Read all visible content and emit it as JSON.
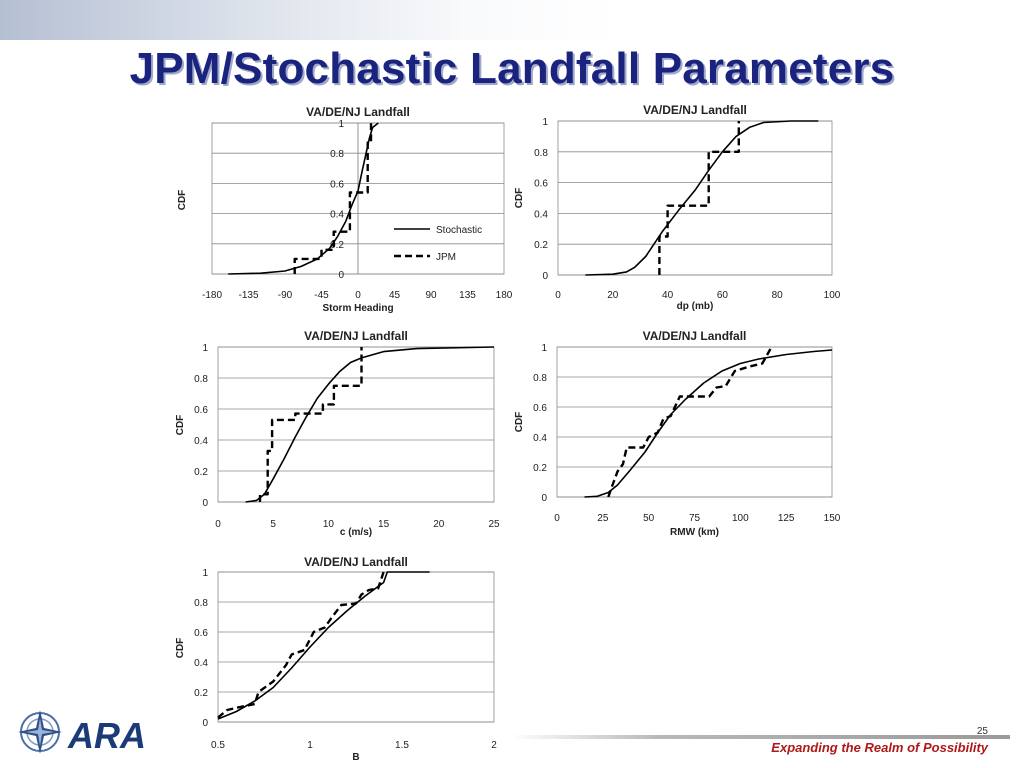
{
  "slide": {
    "title": "JPM/Stochastic Landfall Parameters",
    "page_number": "25",
    "tagline": "Expanding the Realm of Possibility",
    "logo_text": "ARA",
    "colors": {
      "title": "#1a237e",
      "tagline": "#b01818"
    }
  },
  "chart_data": [
    {
      "type": "line",
      "title": "VA/DE/NJ Landfall",
      "xlabel": "Storm Heading",
      "ylabel": "CDF",
      "xlim": [
        -180,
        180
      ],
      "ylim": [
        0,
        1
      ],
      "xticks": [
        -180,
        -135,
        -90,
        -45,
        0,
        45,
        90,
        135,
        180
      ],
      "yticks": [
        0,
        0.2,
        0.4,
        0.6,
        0.8,
        1
      ],
      "ytick_labels": [
        "0",
        "0.2",
        "0.4",
        "0.6",
        "0.8",
        "1"
      ],
      "yaxis_at_zero": true,
      "legend": {
        "position": "right",
        "entries": [
          "Stochastic",
          "JPM"
        ]
      },
      "series": [
        {
          "name": "Stochastic",
          "style": "solid",
          "points": [
            [
              -160,
              0
            ],
            [
              -120,
              0.005
            ],
            [
              -90,
              0.02
            ],
            [
              -70,
              0.05
            ],
            [
              -50,
              0.1
            ],
            [
              -35,
              0.17
            ],
            [
              -25,
              0.25
            ],
            [
              -15,
              0.35
            ],
            [
              -8,
              0.45
            ],
            [
              0,
              0.55
            ],
            [
              5,
              0.68
            ],
            [
              10,
              0.8
            ],
            [
              14,
              0.9
            ],
            [
              18,
              0.97
            ],
            [
              25,
              1.0
            ]
          ]
        },
        {
          "name": "JPM",
          "style": "dashed",
          "points": [
            [
              -78,
              0
            ],
            [
              -78,
              0.1
            ],
            [
              -60,
              0.1
            ],
            [
              -45,
              0.1
            ],
            [
              -45,
              0.16
            ],
            [
              -30,
              0.16
            ],
            [
              -30,
              0.28
            ],
            [
              -10,
              0.28
            ],
            [
              -10,
              0.54
            ],
            [
              12,
              0.54
            ],
            [
              12,
              0.87
            ],
            [
              16,
              0.87
            ],
            [
              16,
              1.0
            ]
          ]
        }
      ]
    },
    {
      "type": "line",
      "title": "VA/DE/NJ Landfall",
      "xlabel": "dp (mb)",
      "ylabel": "CDF",
      "xlim": [
        0,
        100
      ],
      "ylim": [
        0,
        1
      ],
      "xticks": [
        0,
        20,
        40,
        60,
        80,
        100
      ],
      "yticks": [
        0,
        0.2,
        0.4,
        0.6,
        0.8,
        1
      ],
      "ytick_labels": [
        "0",
        "0.2",
        "0.4",
        "0.6",
        "0.8",
        "1"
      ],
      "series": [
        {
          "name": "Stochastic",
          "style": "solid",
          "points": [
            [
              10,
              0
            ],
            [
              20,
              0.005
            ],
            [
              25,
              0.02
            ],
            [
              28,
              0.05
            ],
            [
              32,
              0.12
            ],
            [
              38,
              0.28
            ],
            [
              44,
              0.42
            ],
            [
              50,
              0.55
            ],
            [
              55,
              0.68
            ],
            [
              60,
              0.8
            ],
            [
              65,
              0.9
            ],
            [
              70,
              0.96
            ],
            [
              75,
              0.99
            ],
            [
              85,
              1.0
            ],
            [
              95,
              1.0
            ]
          ]
        },
        {
          "name": "JPM",
          "style": "dashed",
          "points": [
            [
              37,
              0
            ],
            [
              37,
              0.25
            ],
            [
              40,
              0.25
            ],
            [
              40,
              0.45
            ],
            [
              55,
              0.45
            ],
            [
              55,
              0.8
            ],
            [
              66,
              0.8
            ],
            [
              66,
              1.0
            ]
          ]
        }
      ]
    },
    {
      "type": "line",
      "title": "VA/DE/NJ Landfall",
      "xlabel": "c (m/s)",
      "ylabel": "CDF",
      "xlim": [
        0,
        25
      ],
      "ylim": [
        0,
        1
      ],
      "xticks": [
        0,
        5,
        10,
        15,
        20,
        25
      ],
      "yticks": [
        0,
        0.2,
        0.4,
        0.6,
        0.8,
        1
      ],
      "ytick_labels": [
        "0",
        "0.2",
        "0.4",
        "0.6",
        "0.8",
        "1"
      ],
      "series": [
        {
          "name": "Stochastic",
          "style": "solid",
          "points": [
            [
              2.5,
              0
            ],
            [
              3.5,
              0.01
            ],
            [
              4.2,
              0.05
            ],
            [
              5,
              0.15
            ],
            [
              6,
              0.28
            ],
            [
              7,
              0.42
            ],
            [
              8,
              0.55
            ],
            [
              9,
              0.67
            ],
            [
              10,
              0.76
            ],
            [
              11,
              0.84
            ],
            [
              12,
              0.9
            ],
            [
              13,
              0.93
            ],
            [
              15,
              0.97
            ],
            [
              18,
              0.99
            ],
            [
              25,
              1.0
            ]
          ]
        },
        {
          "name": "JPM",
          "style": "dashed",
          "points": [
            [
              3.8,
              0
            ],
            [
              3.8,
              0.05
            ],
            [
              4.5,
              0.05
            ],
            [
              4.5,
              0.33
            ],
            [
              4.9,
              0.33
            ],
            [
              4.9,
              0.53
            ],
            [
              7,
              0.53
            ],
            [
              7,
              0.57
            ],
            [
              9.5,
              0.57
            ],
            [
              9.5,
              0.63
            ],
            [
              10.5,
              0.63
            ],
            [
              10.5,
              0.75
            ],
            [
              13,
              0.75
            ],
            [
              13,
              1.0
            ]
          ]
        }
      ]
    },
    {
      "type": "line",
      "title": "VA/DE/NJ Landfall",
      "xlabel": "RMW (km)",
      "ylabel": "CDF",
      "xlim": [
        0,
        150
      ],
      "ylim": [
        0,
        1
      ],
      "xticks": [
        0,
        25,
        50,
        75,
        100,
        125,
        150
      ],
      "yticks": [
        0,
        0.2,
        0.4,
        0.6,
        0.8,
        1
      ],
      "ytick_labels": [
        "0",
        "0.2",
        "0.4",
        "0.6",
        "0.8",
        "1"
      ],
      "series": [
        {
          "name": "Stochastic",
          "style": "solid",
          "points": [
            [
              15,
              0
            ],
            [
              22,
              0.005
            ],
            [
              28,
              0.03
            ],
            [
              33,
              0.08
            ],
            [
              40,
              0.18
            ],
            [
              48,
              0.3
            ],
            [
              55,
              0.43
            ],
            [
              62,
              0.55
            ],
            [
              70,
              0.65
            ],
            [
              80,
              0.76
            ],
            [
              90,
              0.84
            ],
            [
              100,
              0.89
            ],
            [
              110,
              0.92
            ],
            [
              125,
              0.95
            ],
            [
              140,
              0.97
            ],
            [
              150,
              0.98
            ]
          ]
        },
        {
          "name": "JPM",
          "style": "dashed",
          "points": [
            [
              28,
              0
            ],
            [
              30,
              0.07
            ],
            [
              33,
              0.17
            ],
            [
              36,
              0.22
            ],
            [
              38,
              0.33
            ],
            [
              47,
              0.33
            ],
            [
              50,
              0.4
            ],
            [
              55,
              0.43
            ],
            [
              58,
              0.52
            ],
            [
              62,
              0.54
            ],
            [
              67,
              0.67
            ],
            [
              83,
              0.67
            ],
            [
              87,
              0.73
            ],
            [
              92,
              0.74
            ],
            [
              97,
              0.84
            ],
            [
              105,
              0.87
            ],
            [
              112,
              0.89
            ],
            [
              117,
              1.0
            ]
          ]
        }
      ]
    },
    {
      "type": "line",
      "title": "VA/DE/NJ Landfall",
      "xlabel": "B",
      "ylabel": "CDF",
      "xlim": [
        0.5,
        2
      ],
      "ylim": [
        0,
        1
      ],
      "xticks": [
        0.5,
        1,
        1.5,
        2
      ],
      "yticks": [
        0,
        0.2,
        0.4,
        0.6,
        0.8,
        1
      ],
      "ytick_labels": [
        "0",
        "0.2",
        "0.4",
        "0.6",
        "0.8",
        "1"
      ],
      "series": [
        {
          "name": "Stochastic",
          "style": "solid",
          "points": [
            [
              0.5,
              0.02
            ],
            [
              0.6,
              0.07
            ],
            [
              0.7,
              0.14
            ],
            [
              0.8,
              0.23
            ],
            [
              0.9,
              0.36
            ],
            [
              1.0,
              0.5
            ],
            [
              1.1,
              0.63
            ],
            [
              1.2,
              0.74
            ],
            [
              1.3,
              0.84
            ],
            [
              1.4,
              0.93
            ],
            [
              1.42,
              1.0
            ],
            [
              1.65,
              1.0
            ]
          ]
        },
        {
          "name": "JPM",
          "style": "dashed",
          "points": [
            [
              0.5,
              0.03
            ],
            [
              0.55,
              0.08
            ],
            [
              0.62,
              0.1
            ],
            [
              0.7,
              0.12
            ],
            [
              0.72,
              0.2
            ],
            [
              0.8,
              0.27
            ],
            [
              0.87,
              0.38
            ],
            [
              0.9,
              0.45
            ],
            [
              0.97,
              0.48
            ],
            [
              1.02,
              0.6
            ],
            [
              1.08,
              0.63
            ],
            [
              1.12,
              0.7
            ],
            [
              1.17,
              0.78
            ],
            [
              1.25,
              0.79
            ],
            [
              1.28,
              0.85
            ],
            [
              1.32,
              0.88
            ],
            [
              1.37,
              0.89
            ],
            [
              1.4,
              1.0
            ],
            [
              1.4,
              1.0
            ]
          ]
        }
      ]
    }
  ]
}
